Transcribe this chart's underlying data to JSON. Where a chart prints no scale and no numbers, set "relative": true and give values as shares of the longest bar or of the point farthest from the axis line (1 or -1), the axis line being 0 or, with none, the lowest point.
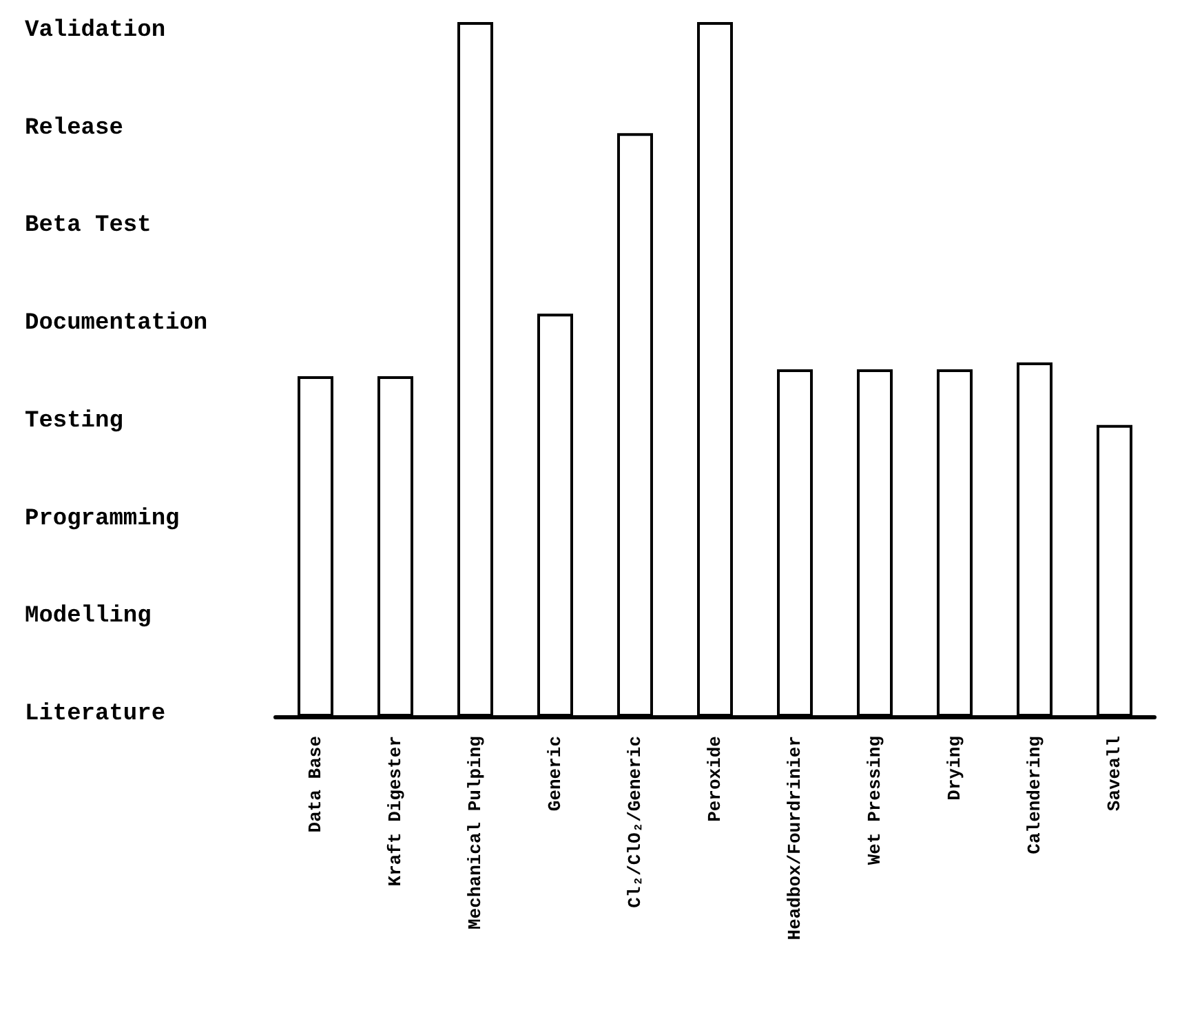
{
  "chart_data": {
    "type": "bar",
    "relative": true,
    "categories": [
      "Data Base",
      "Kraft Digester",
      "Mechanical Pulping",
      "Generic",
      "Cl₂/ClO₂/Generic",
      "Peroxide",
      "Headbox/Fourdrinier",
      "Wet Pressing",
      "Drying",
      "Calendering",
      "Saveall"
    ],
    "values": [
      0.49,
      0.49,
      1,
      0.58,
      0.84,
      1,
      0.5,
      0.5,
      0.5,
      0.51,
      0.42
    ],
    "color": "#ffffff",
    "annotations": [
      "Literature",
      "Modelling",
      "Programming",
      "Testing",
      "Documentation",
      "Beta Test",
      "Release",
      "Validation"
    ]
  }
}
